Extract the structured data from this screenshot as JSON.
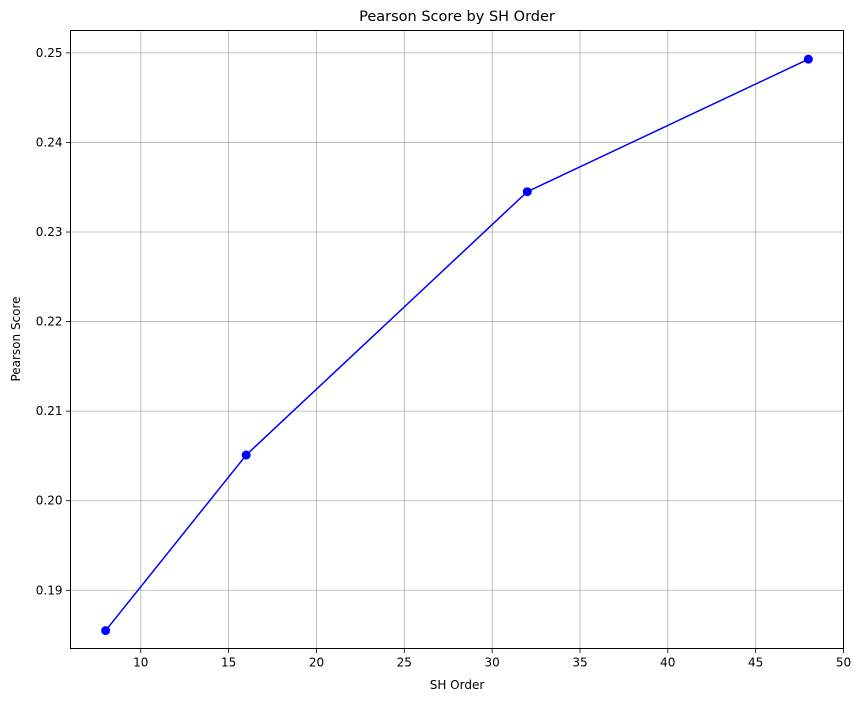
{
  "chart_data": {
    "type": "line",
    "title": "Pearson Score by SH Order",
    "xlabel": "SH Order",
    "ylabel": "Pearson Score",
    "xlim": [
      6,
      50
    ],
    "ylim": [
      0.1835,
      0.2525
    ],
    "xticks": [
      10,
      15,
      20,
      25,
      30,
      35,
      40,
      45,
      50
    ],
    "yticks": [
      0.19,
      0.2,
      0.21,
      0.22,
      0.23,
      0.24,
      0.25
    ],
    "xtick_labels": [
      "10",
      "15",
      "20",
      "25",
      "30",
      "35",
      "40",
      "45",
      "50"
    ],
    "ytick_labels": [
      "0.19",
      "0.20",
      "0.21",
      "0.22",
      "0.23",
      "0.24",
      "0.25"
    ],
    "grid": true,
    "series": [
      {
        "color": "#0000ff",
        "marker": "circle",
        "x": [
          8,
          16,
          32,
          48
        ],
        "y": [
          0.1855,
          0.2051,
          0.2345,
          0.2493
        ]
      }
    ]
  }
}
